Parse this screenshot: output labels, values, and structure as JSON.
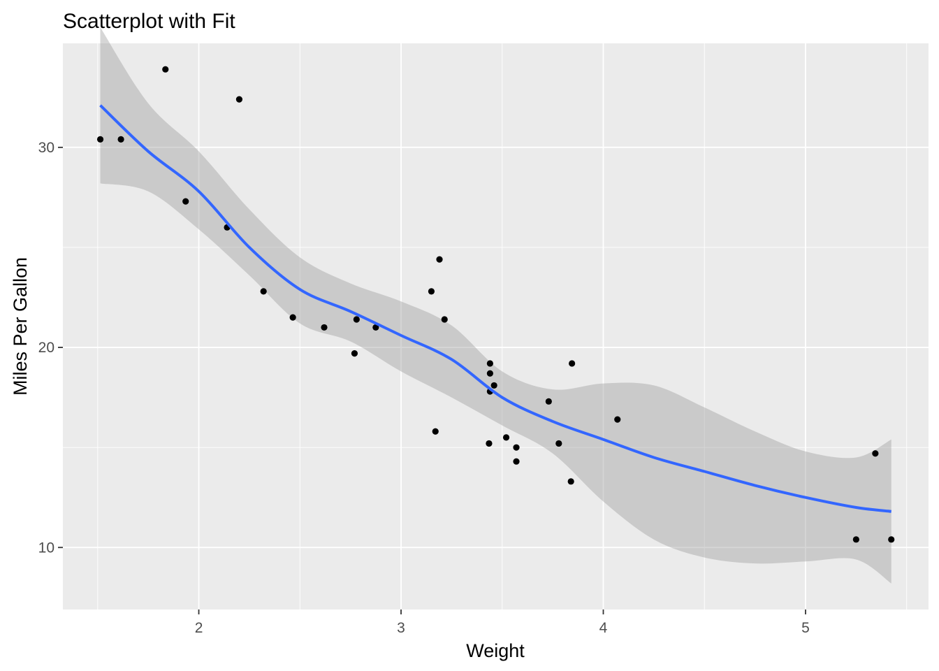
{
  "chart_data": {
    "type": "scatter",
    "title": "Scatterplot with Fit",
    "xlabel": "Weight",
    "ylabel": "Miles Per Gallon",
    "xlim": [
      1.328,
      5.608
    ],
    "ylim": [
      6.9,
      35.2
    ],
    "x_ticks": [
      2,
      3,
      4,
      5
    ],
    "y_ticks": [
      10,
      20,
      30
    ],
    "x_tick_labels": [
      "2",
      "3",
      "4",
      "5"
    ],
    "y_tick_labels": [
      "10",
      "20",
      "30"
    ],
    "grid": true,
    "legend": "none",
    "colors": {
      "panel": "#ebebeb",
      "grid": "#ffffff",
      "points": "#000000",
      "fit_line": "#3366ff",
      "ribbon": "#999999"
    },
    "points": [
      {
        "x": 2.62,
        "y": 21.0
      },
      {
        "x": 2.875,
        "y": 21.0
      },
      {
        "x": 2.32,
        "y": 22.8
      },
      {
        "x": 3.215,
        "y": 21.4
      },
      {
        "x": 3.44,
        "y": 18.7
      },
      {
        "x": 3.46,
        "y": 18.1
      },
      {
        "x": 3.57,
        "y": 14.3
      },
      {
        "x": 3.19,
        "y": 24.4
      },
      {
        "x": 3.15,
        "y": 22.8
      },
      {
        "x": 3.44,
        "y": 19.2
      },
      {
        "x": 3.44,
        "y": 17.8
      },
      {
        "x": 4.07,
        "y": 16.4
      },
      {
        "x": 3.73,
        "y": 17.3
      },
      {
        "x": 3.78,
        "y": 15.2
      },
      {
        "x": 5.25,
        "y": 10.4
      },
      {
        "x": 5.424,
        "y": 10.4
      },
      {
        "x": 5.345,
        "y": 14.7
      },
      {
        "x": 2.2,
        "y": 32.4
      },
      {
        "x": 1.615,
        "y": 30.4
      },
      {
        "x": 1.835,
        "y": 33.9
      },
      {
        "x": 2.465,
        "y": 21.5
      },
      {
        "x": 3.52,
        "y": 15.5
      },
      {
        "x": 3.435,
        "y": 15.2
      },
      {
        "x": 3.84,
        "y": 13.3
      },
      {
        "x": 3.845,
        "y": 19.2
      },
      {
        "x": 1.935,
        "y": 27.3
      },
      {
        "x": 2.14,
        "y": 26.0
      },
      {
        "x": 1.513,
        "y": 30.4
      },
      {
        "x": 3.17,
        "y": 15.8
      },
      {
        "x": 2.77,
        "y": 19.7
      },
      {
        "x": 3.57,
        "y": 15.0
      },
      {
        "x": 2.78,
        "y": 21.4
      }
    ],
    "fit": {
      "method": "loess",
      "x": [
        1.513,
        1.75,
        2.0,
        2.25,
        2.5,
        2.75,
        3.0,
        3.25,
        3.5,
        3.75,
        4.0,
        4.25,
        4.5,
        4.75,
        5.0,
        5.25,
        5.424
      ],
      "y": [
        32.1,
        29.8,
        27.8,
        25.0,
        22.9,
        21.8,
        20.6,
        19.4,
        17.5,
        16.3,
        15.4,
        14.5,
        13.8,
        13.1,
        12.5,
        12.0,
        11.8
      ],
      "lower": [
        28.2,
        27.8,
        25.9,
        23.6,
        21.2,
        20.3,
        18.8,
        17.5,
        16.1,
        14.7,
        12.3,
        10.4,
        9.5,
        9.2,
        9.3,
        9.4,
        8.2
      ],
      "upper": [
        36.0,
        32.2,
        29.8,
        26.9,
        24.5,
        23.2,
        22.3,
        21.1,
        18.8,
        17.9,
        18.2,
        18.1,
        17.0,
        15.8,
        14.8,
        14.5,
        15.4
      ]
    }
  }
}
